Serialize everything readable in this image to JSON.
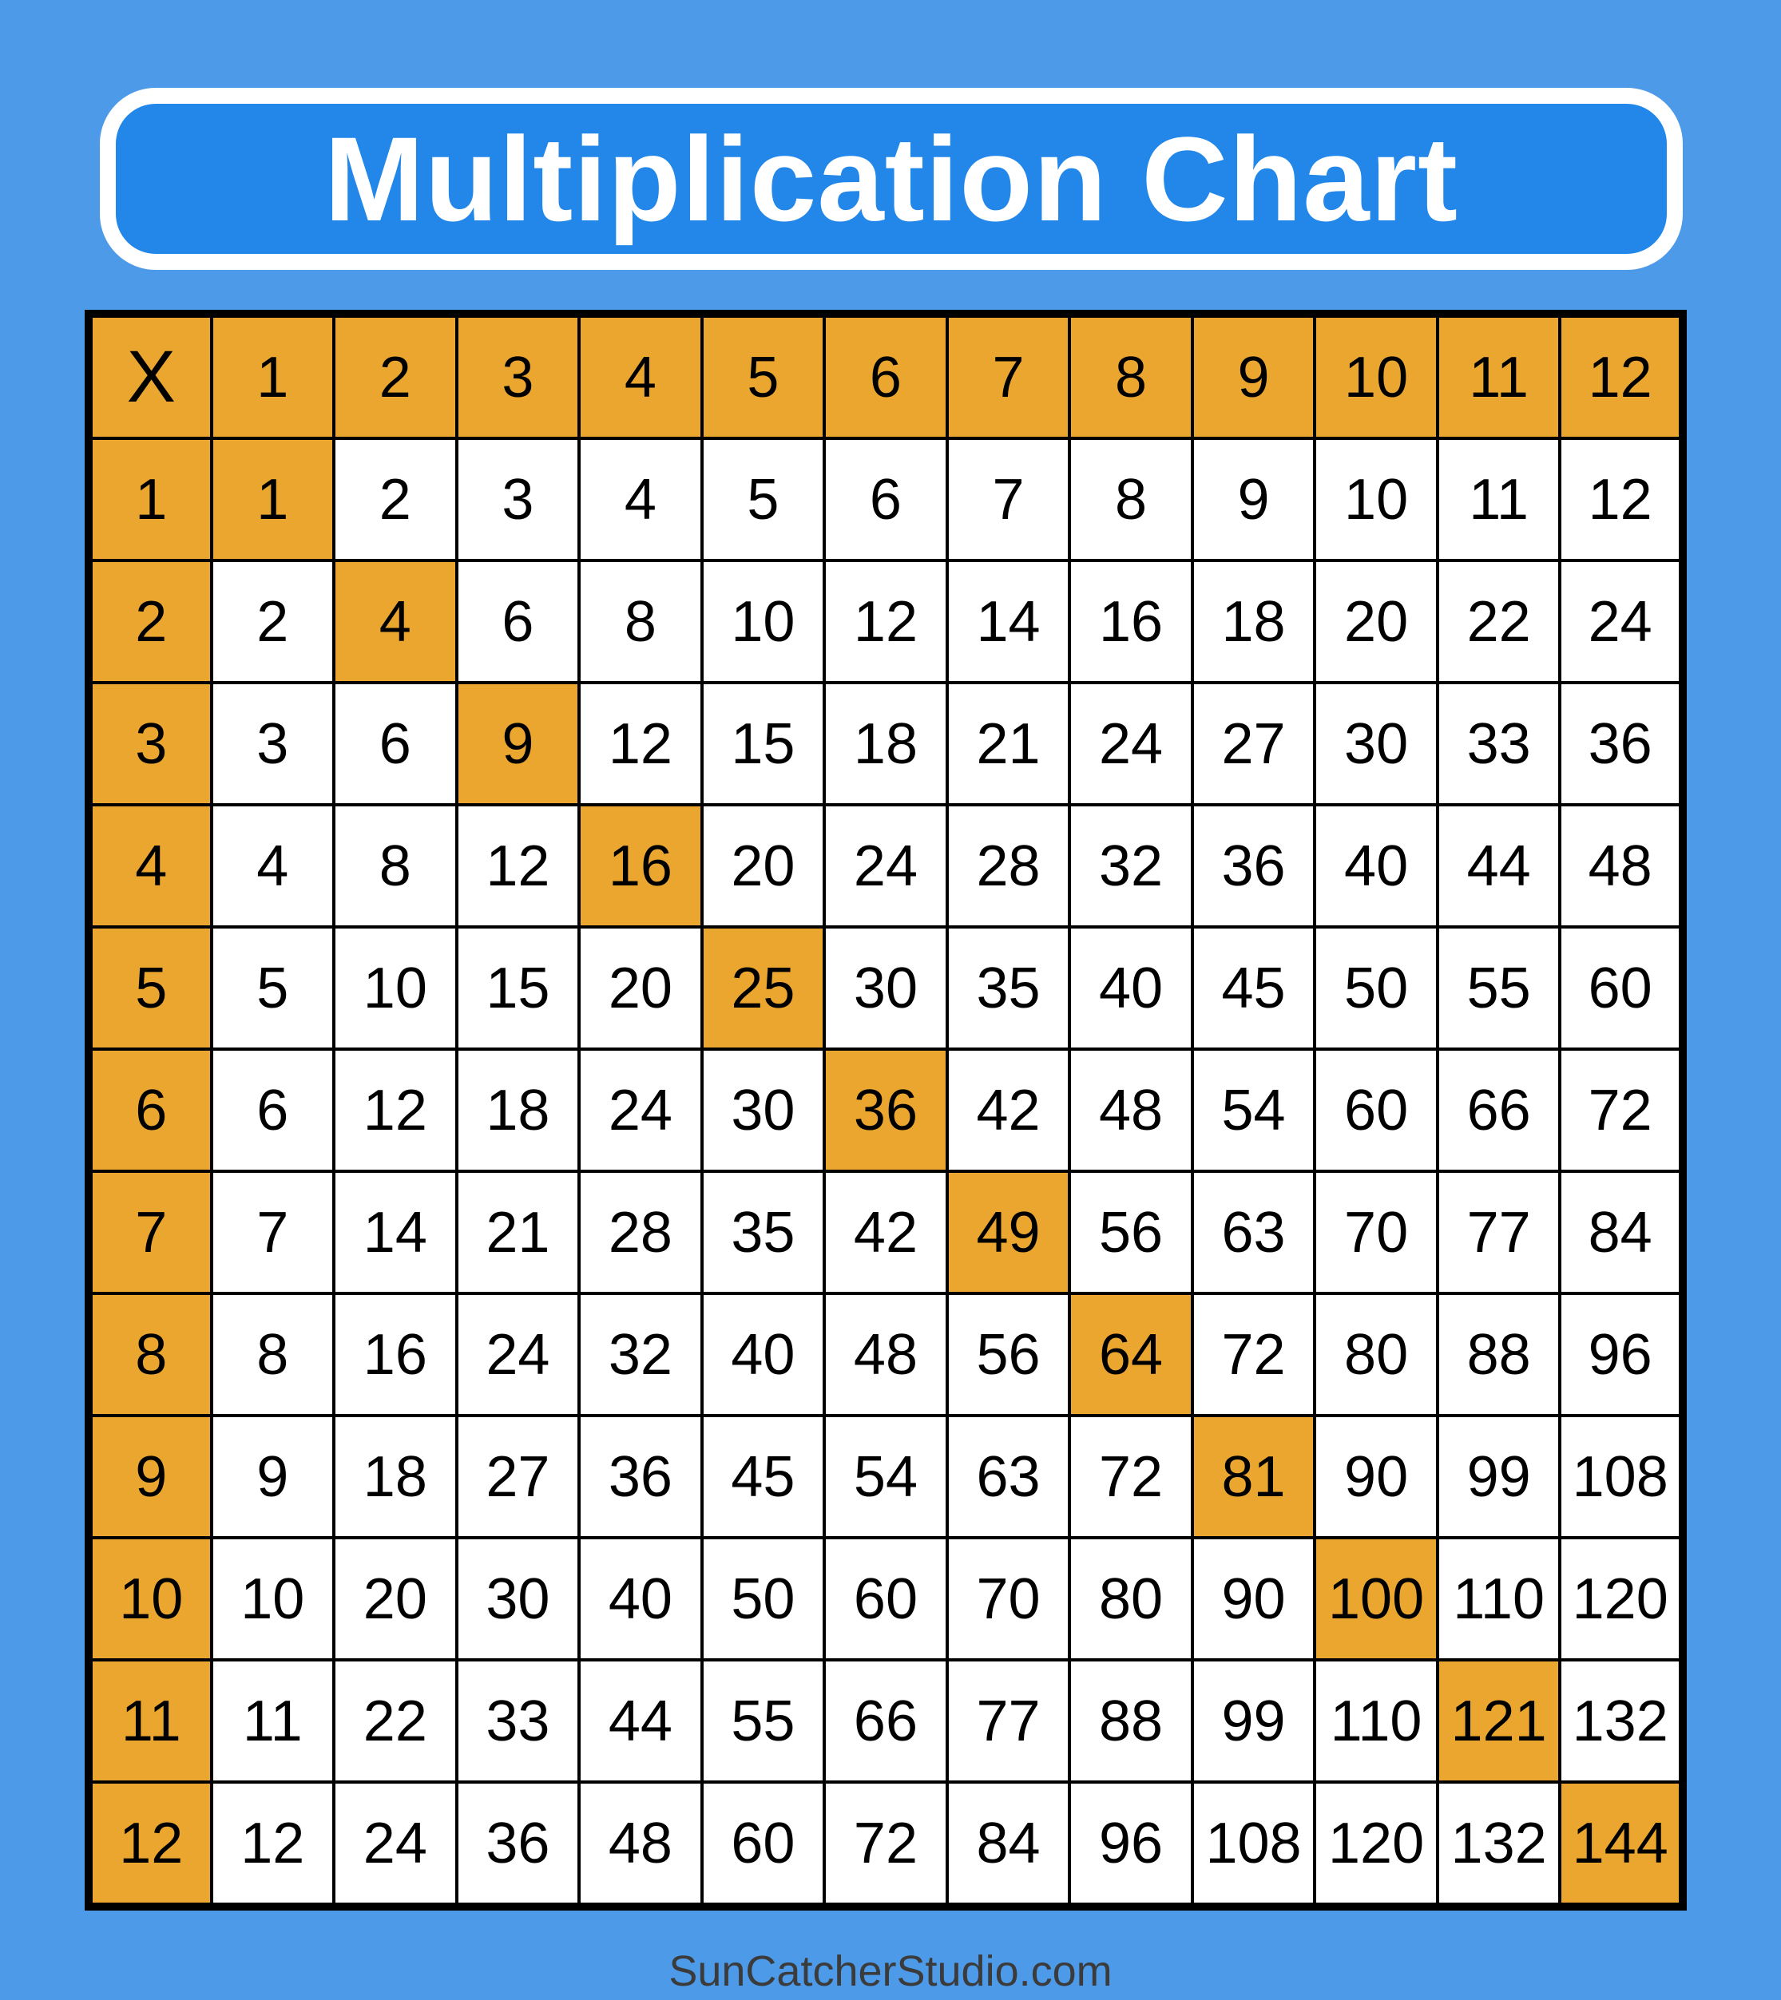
{
  "title": "Multiplication Chart",
  "footer": "SunCatcherStudio.com",
  "colors": {
    "background": "#4D9AE8",
    "banner_fill": "#2287E9",
    "banner_border": "#FFFFFF",
    "title_text": "#FFFFFF",
    "highlight_orange": "#EAA62E",
    "cell_background": "#FFFFFF",
    "grid_lines": "#000000",
    "cell_text": "#000000",
    "footer_text": "#3B3B3B"
  },
  "chart_data": {
    "type": "table",
    "title": "Multiplication Chart",
    "corner_label": "X",
    "column_headers": [
      "1",
      "2",
      "3",
      "4",
      "5",
      "6",
      "7",
      "8",
      "9",
      "10",
      "11",
      "12"
    ],
    "row_headers": [
      "1",
      "2",
      "3",
      "4",
      "5",
      "6",
      "7",
      "8",
      "9",
      "10",
      "11",
      "12"
    ],
    "rows": [
      [
        1,
        2,
        3,
        4,
        5,
        6,
        7,
        8,
        9,
        10,
        11,
        12
      ],
      [
        2,
        4,
        6,
        8,
        10,
        12,
        14,
        16,
        18,
        20,
        22,
        24
      ],
      [
        3,
        6,
        9,
        12,
        15,
        18,
        21,
        24,
        27,
        30,
        33,
        36
      ],
      [
        4,
        8,
        12,
        16,
        20,
        24,
        28,
        32,
        36,
        40,
        44,
        48
      ],
      [
        5,
        10,
        15,
        20,
        25,
        30,
        35,
        40,
        45,
        50,
        55,
        60
      ],
      [
        6,
        12,
        18,
        24,
        30,
        36,
        42,
        48,
        54,
        60,
        66,
        72
      ],
      [
        7,
        14,
        21,
        28,
        35,
        42,
        49,
        56,
        63,
        70,
        77,
        84
      ],
      [
        8,
        16,
        24,
        32,
        40,
        48,
        56,
        64,
        72,
        80,
        88,
        96
      ],
      [
        9,
        18,
        27,
        36,
        45,
        54,
        63,
        72,
        81,
        90,
        99,
        108
      ],
      [
        10,
        20,
        30,
        40,
        50,
        60,
        70,
        80,
        90,
        100,
        110,
        120
      ],
      [
        11,
        22,
        33,
        44,
        55,
        66,
        77,
        88,
        99,
        110,
        121,
        132
      ],
      [
        12,
        24,
        36,
        48,
        60,
        72,
        84,
        96,
        108,
        120,
        132,
        144
      ]
    ],
    "highlighted_cells": "header row, header column, and perfect-square diagonal (1,4,9,16,25,36,49,64,81,100,121,144)",
    "legend_position": "none",
    "grid": true
  }
}
